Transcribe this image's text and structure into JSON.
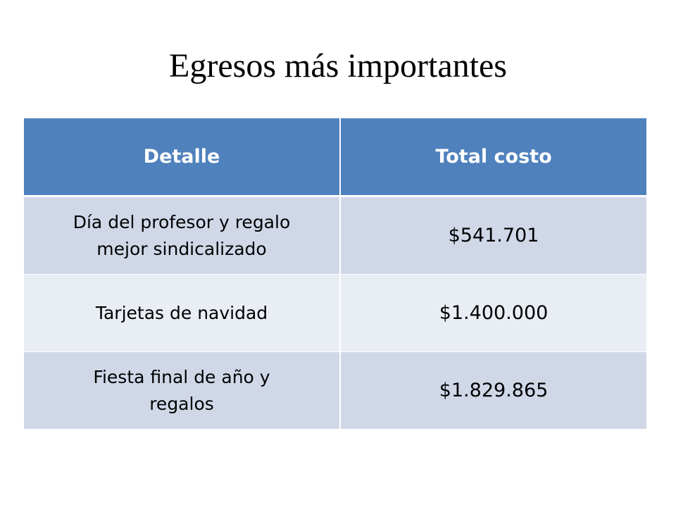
{
  "slide": {
    "title": "Egresos más importantes"
  },
  "table": {
    "headers": {
      "detail": "Detalle",
      "total": "Total costo"
    },
    "rows": [
      {
        "detail_line1": "Día del profesor y regalo",
        "detail_line2": "mejor sindicalizado",
        "total": "$541.701"
      },
      {
        "detail_line1": "Tarjetas de navidad",
        "detail_line2": "",
        "total": "$1.400.000"
      },
      {
        "detail_line1": "Fiesta final de año y",
        "detail_line2": "regalos",
        "total": "$1.829.865"
      }
    ]
  },
  "colors": {
    "header_background": "#4f81bd",
    "row_odd_background": "#d0d8e8",
    "row_even_background": "#e9edf4"
  }
}
